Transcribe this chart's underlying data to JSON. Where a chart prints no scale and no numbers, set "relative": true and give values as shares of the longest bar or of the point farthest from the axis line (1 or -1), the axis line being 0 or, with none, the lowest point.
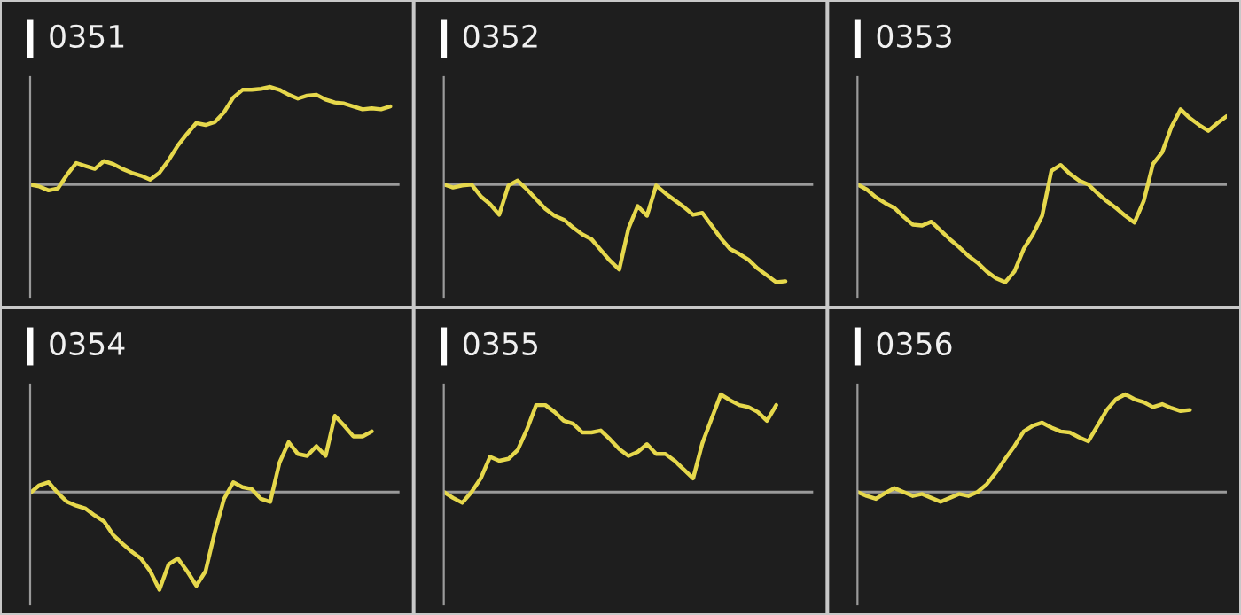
{
  "chart_data": [
    {
      "type": "line",
      "title": "0351",
      "relative": true,
      "tick_labels": false,
      "color": "#e6d84c",
      "categories": [
        null,
        null,
        null,
        null,
        null,
        null,
        null,
        null,
        null,
        null,
        null,
        null,
        null,
        null,
        null,
        null,
        null,
        null,
        null,
        null,
        null,
        null,
        null,
        null,
        null,
        null,
        null,
        null,
        null,
        null,
        null,
        null,
        null,
        null,
        null,
        null,
        null,
        null,
        null,
        null,
        null
      ],
      "values": [
        0,
        -0.02,
        -0.06,
        -0.04,
        0.1,
        0.22,
        0.19,
        0.16,
        0.24,
        0.21,
        0.16,
        0.12,
        0.09,
        0.05,
        0.12,
        0.25,
        0.4,
        0.52,
        0.63,
        0.61,
        0.64,
        0.74,
        0.89,
        0.97,
        0.97,
        0.98,
        1.0,
        0.97,
        0.92,
        0.88,
        0.91,
        0.92,
        0.87,
        0.84,
        0.83,
        0.8,
        0.77,
        0.78,
        0.77,
        0.8,
        null
      ]
    },
    {
      "type": "line",
      "title": "0352",
      "relative": true,
      "tick_labels": false,
      "color": "#e6d84c",
      "categories": [
        null,
        null,
        null,
        null,
        null,
        null,
        null,
        null,
        null,
        null,
        null,
        null,
        null,
        null,
        null,
        null,
        null,
        null,
        null,
        null,
        null,
        null,
        null,
        null,
        null,
        null,
        null,
        null,
        null,
        null,
        null,
        null,
        null,
        null,
        null,
        null,
        null,
        null,
        null,
        null,
        null
      ],
      "values": [
        0,
        -0.03,
        -0.01,
        0,
        -0.12,
        -0.2,
        -0.31,
        -0.01,
        0.04,
        -0.05,
        -0.15,
        -0.25,
        -0.32,
        -0.36,
        -0.44,
        -0.51,
        -0.56,
        -0.67,
        -0.78,
        -0.87,
        -0.45,
        -0.22,
        -0.32,
        -0.01,
        -0.09,
        -0.16,
        -0.23,
        -0.31,
        -0.29,
        -0.42,
        -0.55,
        -0.66,
        -0.71,
        -0.77,
        -0.86,
        -0.93,
        -1.0,
        -0.99,
        null,
        null,
        null
      ]
    },
    {
      "type": "line",
      "title": "0353",
      "relative": true,
      "tick_labels": false,
      "color": "#e6d84c",
      "categories": [
        null,
        null,
        null,
        null,
        null,
        null,
        null,
        null,
        null,
        null,
        null,
        null,
        null,
        null,
        null,
        null,
        null,
        null,
        null,
        null,
        null,
        null,
        null,
        null,
        null,
        null,
        null,
        null,
        null,
        null,
        null,
        null,
        null,
        null,
        null,
        null,
        null,
        null,
        null,
        null,
        null
      ],
      "values": [
        0,
        -0.05,
        -0.13,
        -0.19,
        -0.24,
        -0.33,
        -0.41,
        -0.42,
        -0.38,
        -0.47,
        -0.56,
        -0.64,
        -0.73,
        -0.8,
        -0.89,
        -0.96,
        -1.0,
        -0.89,
        -0.66,
        -0.51,
        -0.32,
        0.14,
        0.2,
        0.11,
        0.04,
        0,
        -0.09,
        -0.17,
        -0.24,
        -0.32,
        -0.39,
        -0.17,
        0.21,
        0.33,
        0.59,
        0.77,
        0.68,
        0.61,
        0.55,
        0.63,
        0.7
      ]
    },
    {
      "type": "line",
      "title": "0354",
      "relative": true,
      "tick_labels": false,
      "color": "#e6d84c",
      "categories": [
        null,
        null,
        null,
        null,
        null,
        null,
        null,
        null,
        null,
        null,
        null,
        null,
        null,
        null,
        null,
        null,
        null,
        null,
        null,
        null,
        null,
        null,
        null,
        null,
        null,
        null,
        null,
        null,
        null,
        null,
        null,
        null,
        null,
        null,
        null,
        null,
        null,
        null,
        null,
        null,
        null
      ],
      "values": [
        -0.01,
        0.07,
        0.1,
        -0.01,
        -0.1,
        -0.14,
        -0.17,
        -0.24,
        -0.3,
        -0.44,
        -0.53,
        -0.61,
        -0.68,
        -0.81,
        -1.0,
        -0.74,
        -0.68,
        -0.81,
        -0.96,
        -0.81,
        -0.41,
        -0.07,
        0.1,
        0.05,
        0.03,
        -0.07,
        -0.1,
        0.3,
        0.51,
        0.39,
        0.37,
        0.47,
        0.37,
        0.78,
        0.68,
        0.57,
        0.57,
        0.62,
        null,
        null,
        null
      ]
    },
    {
      "type": "line",
      "title": "0355",
      "relative": true,
      "tick_labels": false,
      "color": "#e6d84c",
      "categories": [
        null,
        null,
        null,
        null,
        null,
        null,
        null,
        null,
        null,
        null,
        null,
        null,
        null,
        null,
        null,
        null,
        null,
        null,
        null,
        null,
        null,
        null,
        null,
        null,
        null,
        null,
        null,
        null,
        null,
        null,
        null,
        null,
        null,
        null,
        null,
        null,
        null,
        null,
        null,
        null,
        null
      ],
      "values": [
        0,
        -0.06,
        -0.11,
        0,
        0.14,
        0.36,
        0.32,
        0.34,
        0.43,
        0.64,
        0.89,
        0.89,
        0.82,
        0.73,
        0.7,
        0.61,
        0.61,
        0.63,
        0.54,
        0.44,
        0.37,
        0.41,
        0.49,
        0.39,
        0.39,
        0.32,
        0.23,
        0.14,
        0.5,
        0.75,
        1.0,
        0.94,
        0.89,
        0.87,
        0.82,
        0.73,
        0.89,
        null,
        null,
        null,
        null
      ]
    },
    {
      "type": "line",
      "title": "0356",
      "relative": true,
      "tick_labels": false,
      "color": "#e6d84c",
      "categories": [
        null,
        null,
        null,
        null,
        null,
        null,
        null,
        null,
        null,
        null,
        null,
        null,
        null,
        null,
        null,
        null,
        null,
        null,
        null,
        null,
        null,
        null,
        null,
        null,
        null,
        null,
        null,
        null,
        null,
        null,
        null,
        null,
        null,
        null,
        null,
        null,
        null,
        null,
        null,
        null,
        null
      ],
      "values": [
        0,
        -0.04,
        -0.07,
        -0.01,
        0.04,
        0,
        -0.04,
        -0.02,
        -0.06,
        -0.1,
        -0.06,
        -0.02,
        -0.04,
        0,
        0.08,
        0.2,
        0.34,
        0.47,
        0.62,
        0.68,
        0.71,
        0.66,
        0.62,
        0.61,
        0.56,
        0.52,
        0.68,
        0.84,
        0.95,
        1.0,
        0.95,
        0.92,
        0.87,
        0.9,
        0.86,
        0.83,
        0.84,
        null,
        null,
        null,
        null
      ]
    }
  ]
}
